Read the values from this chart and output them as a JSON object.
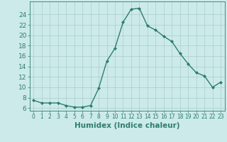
{
  "x": [
    0,
    1,
    2,
    3,
    4,
    5,
    6,
    7,
    8,
    9,
    10,
    11,
    12,
    13,
    14,
    15,
    16,
    17,
    18,
    19,
    20,
    21,
    22,
    23
  ],
  "y": [
    7.5,
    7.0,
    7.0,
    7.0,
    6.5,
    6.2,
    6.2,
    6.5,
    9.8,
    15.0,
    17.5,
    22.5,
    25.0,
    25.2,
    21.8,
    21.0,
    19.8,
    18.8,
    16.5,
    14.5,
    12.8,
    12.2,
    10.0,
    11.0
  ],
  "line_color": "#2e7d6e",
  "marker": "D",
  "marker_size": 2.0,
  "line_width": 1.0,
  "bg_color": "#cceaea",
  "grid_color": "#aacccc",
  "xlabel": "Humidex (Indice chaleur)",
  "xlabel_color": "#2e7d6e",
  "xlabel_fontsize": 7.5,
  "tick_color": "#2e7d6e",
  "ylim": [
    5.5,
    26.5
  ],
  "xlim": [
    -0.5,
    23.5
  ],
  "yticks": [
    6,
    8,
    10,
    12,
    14,
    16,
    18,
    20,
    22,
    24
  ],
  "xticks": [
    0,
    1,
    2,
    3,
    4,
    5,
    6,
    7,
    8,
    9,
    10,
    11,
    12,
    13,
    14,
    15,
    16,
    17,
    18,
    19,
    20,
    21,
    22,
    23
  ],
  "ytick_fontsize": 6.5,
  "xtick_fontsize": 5.5
}
